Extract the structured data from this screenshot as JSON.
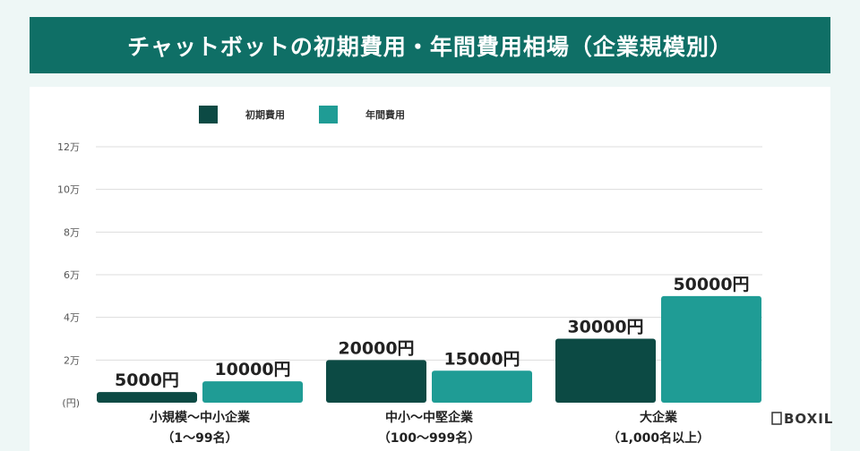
{
  "title": "チャットボットの初期費用・年間費用相場（企業規模別）",
  "watermark": "BOXIL",
  "colors": {
    "header_bg": "#0f6f66",
    "initial": "#0c4a44",
    "annual": "#1f9c95",
    "grid": "#dddddd"
  },
  "chart_data": {
    "type": "bar",
    "title": "チャットボットの初期費用・年間費用相場（企業規模別）",
    "categories": [
      [
        "小規模〜中小企業",
        "（1〜99名）"
      ],
      [
        "中小〜中堅企業",
        "（100〜999名）"
      ],
      [
        "大企業",
        "（1,000名以上）"
      ]
    ],
    "series": [
      {
        "name": "初期費用",
        "color": "#0c4a44",
        "values": [
          5000,
          20000,
          30000
        ],
        "labels": [
          "5000円",
          "20000円",
          "30000円"
        ]
      },
      {
        "name": "年間費用",
        "color": "#1f9c95",
        "values": [
          10000,
          15000,
          50000
        ],
        "labels": [
          "10000円",
          "15000円",
          "50000円"
        ]
      }
    ],
    "ylim": [
      0,
      120000
    ],
    "yticks": [
      {
        "value": 0,
        "label": "(円)"
      },
      {
        "value": 20000,
        "label": "2万"
      },
      {
        "value": 40000,
        "label": "4万"
      },
      {
        "value": 60000,
        "label": "6万"
      },
      {
        "value": 80000,
        "label": "8万"
      },
      {
        "value": 100000,
        "label": "10万"
      },
      {
        "value": 120000,
        "label": "12万"
      }
    ],
    "legend_position": "top-left",
    "grid": true
  }
}
